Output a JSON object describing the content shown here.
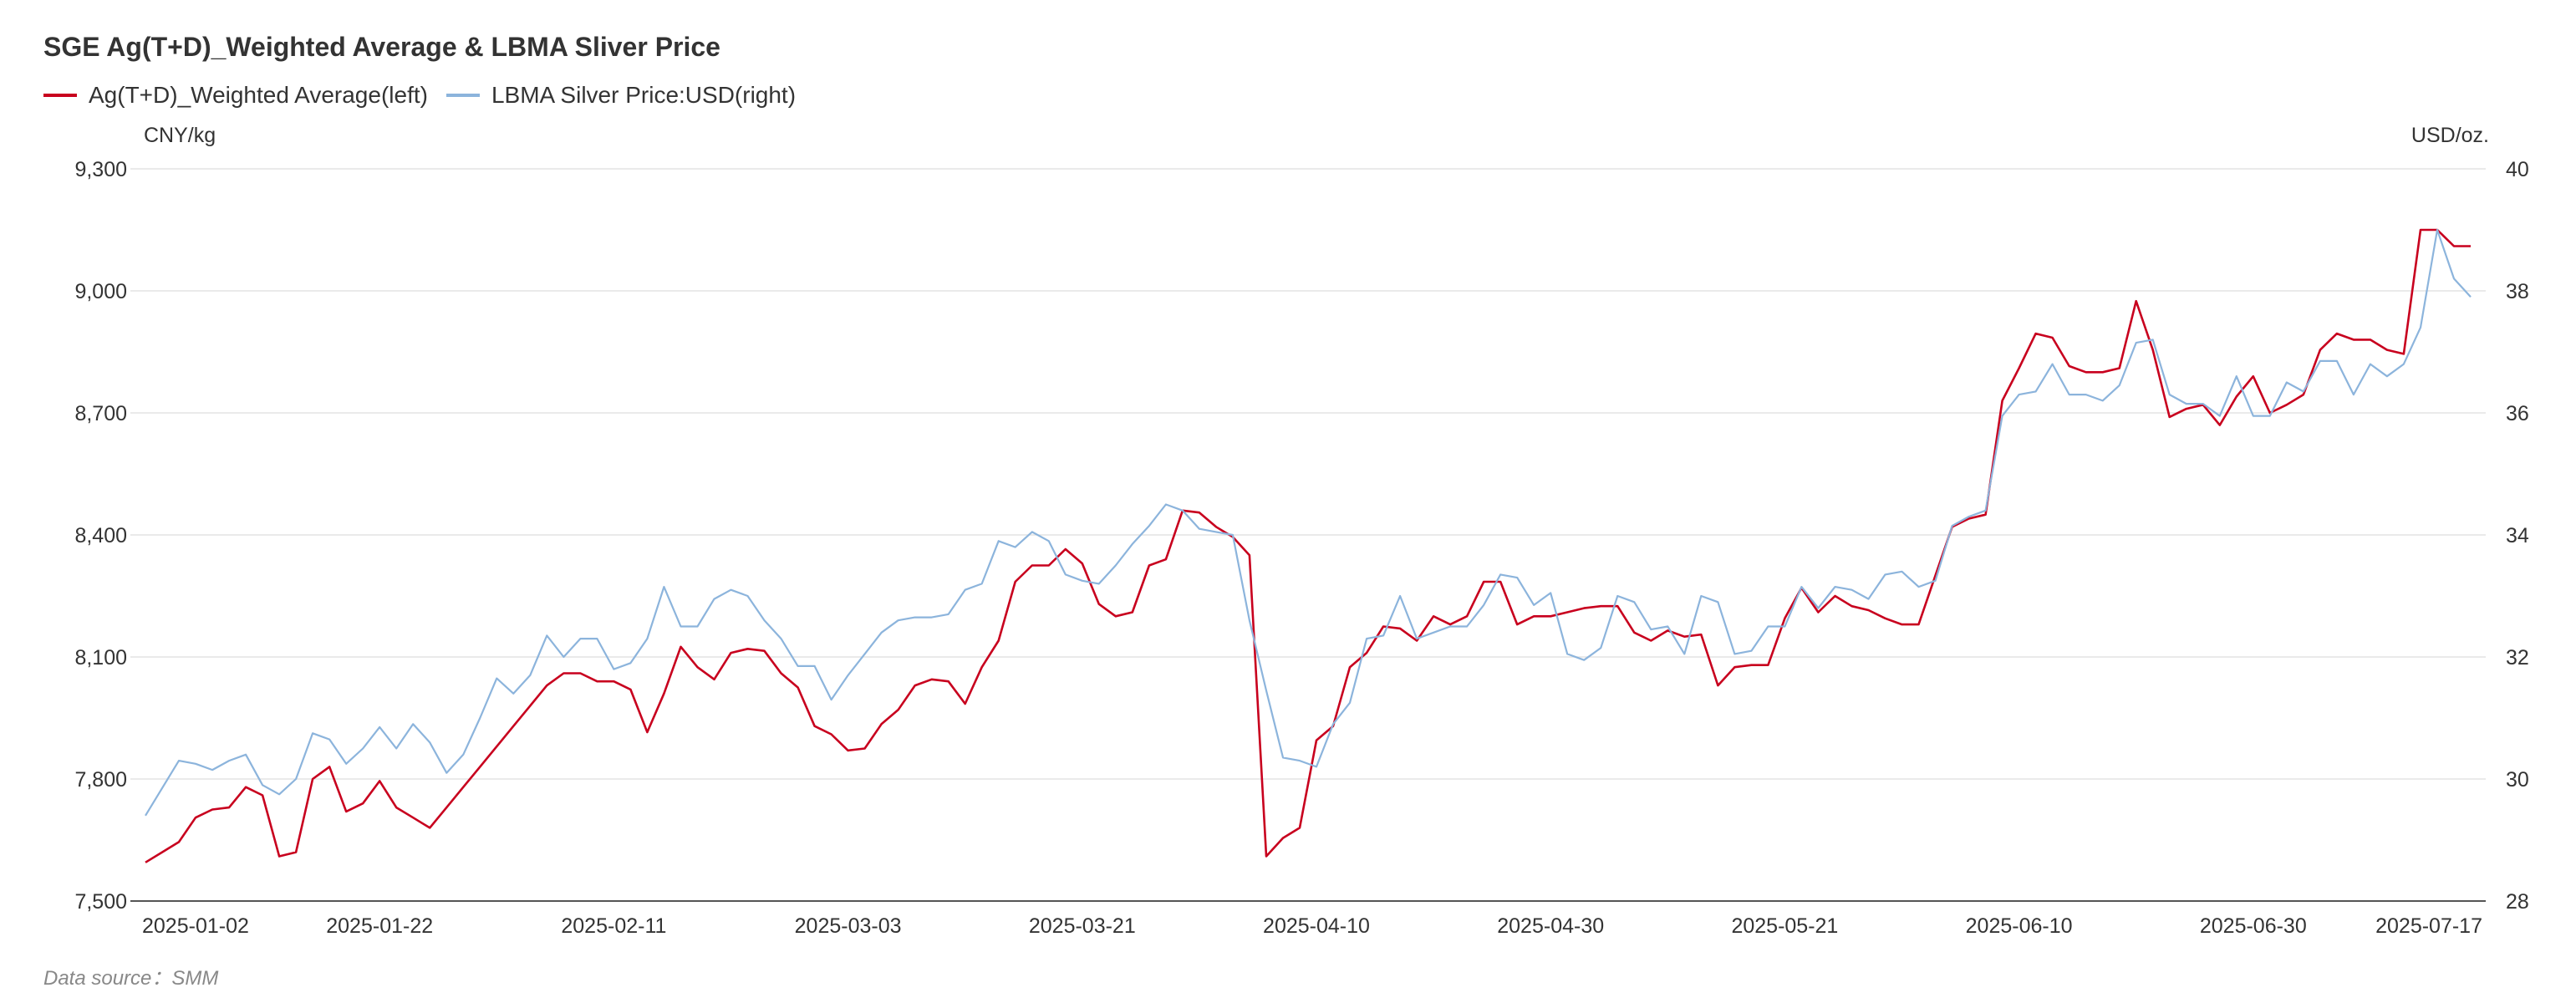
{
  "chart_data": {
    "type": "line",
    "title": "SGE Ag(T+D)_Weighted Average & LBMA Sliver Price",
    "left_axis_unit": "CNY/kg",
    "right_axis_unit": "USD/oz.",
    "left_ylim": [
      7500,
      9300
    ],
    "right_ylim": [
      28,
      40
    ],
    "left_ticks": [
      "7,500",
      "7,800",
      "8,100",
      "8,400",
      "8,700",
      "9,000",
      "9,300"
    ],
    "right_ticks": [
      "28",
      "30",
      "32",
      "34",
      "36",
      "38",
      "40"
    ],
    "x_tick_labels": [
      "2025-01-02",
      "2025-01-22",
      "2025-02-11",
      "2025-03-03",
      "2025-03-21",
      "2025-04-10",
      "2025-04-30",
      "2025-05-21",
      "2025-06-10",
      "2025-06-30",
      "2025-07-17"
    ],
    "grid": true,
    "legend_position": "top-left",
    "source": "Data source：SMM",
    "series": [
      {
        "name": "Ag(T+D)_Weighted Average(left)",
        "axis": "left",
        "color": "#c8001e",
        "values": [
          7595,
          7620,
          7645,
          7705,
          7725,
          7730,
          7780,
          7760,
          7610,
          7620,
          7800,
          7830,
          7720,
          7740,
          7795,
          7730,
          7705,
          7680,
          7730,
          7780,
          7830,
          7880,
          7930,
          7980,
          8030,
          8060,
          8060,
          8040,
          8040,
          8020,
          7915,
          8010,
          8125,
          8075,
          8045,
          8110,
          8120,
          8115,
          8060,
          8025,
          7930,
          7910,
          7870,
          7875,
          7935,
          7970,
          8030,
          8045,
          8040,
          7985,
          8075,
          8140,
          8285,
          8325,
          8325,
          8365,
          8330,
          8230,
          8200,
          8210,
          8325,
          8340,
          8460,
          8455,
          8420,
          8395,
          8350,
          7610,
          7655,
          7680,
          7895,
          7930,
          8075,
          8110,
          8175,
          8170,
          8140,
          8200,
          8180,
          8200,
          8285,
          8285,
          8180,
          8200,
          8200,
          8210,
          8220,
          8225,
          8225,
          8160,
          8140,
          8165,
          8150,
          8155,
          8030,
          8075,
          8080,
          8080,
          8195,
          8270,
          8210,
          8250,
          8225,
          8215,
          8195,
          8180,
          8180,
          8300,
          8420,
          8440,
          8450,
          8730,
          8810,
          8895,
          8885,
          8815,
          8800,
          8800,
          8810,
          8975,
          8855,
          8690,
          8710,
          8720,
          8670,
          8740,
          8790,
          8700,
          8720,
          8745,
          8855,
          8895,
          8880,
          8880,
          8855,
          8845,
          9150,
          9150,
          9110,
          9110
        ],
        "x_index": [
          0,
          1,
          2,
          3,
          4,
          5,
          6,
          7,
          8,
          9,
          10,
          11,
          12,
          13,
          14,
          15,
          16,
          17,
          18,
          19,
          20,
          21,
          22,
          23,
          24,
          25,
          26,
          27,
          28,
          29,
          30,
          31,
          32,
          33,
          34,
          35,
          36,
          37,
          38,
          39,
          40,
          41,
          42,
          43,
          44,
          45,
          46,
          47,
          48,
          49,
          50,
          51,
          52,
          53,
          54,
          55,
          56,
          57,
          58,
          59,
          60,
          61,
          62,
          63,
          64,
          65,
          66,
          67,
          68,
          69,
          70,
          71,
          72,
          73,
          74,
          75,
          76,
          77,
          78,
          79,
          80,
          81,
          82,
          83,
          84,
          85,
          86,
          87,
          88,
          89,
          90,
          91,
          92,
          93,
          94,
          95,
          96,
          97,
          98,
          99,
          100,
          101,
          102,
          103,
          104,
          105,
          106,
          107,
          108,
          109,
          110,
          111,
          112,
          113,
          114,
          115,
          116,
          117,
          118,
          119,
          120,
          121,
          122,
          123,
          124,
          125,
          126,
          127,
          128,
          129,
          130,
          131,
          132,
          133,
          134,
          135,
          136,
          137,
          138,
          139
        ]
      },
      {
        "name": "LBMA Silver Price:USD(right)",
        "axis": "right",
        "color": "#8cb4dc",
        "values": [
          29.4,
          29.85,
          30.3,
          30.25,
          30.15,
          30.3,
          30.4,
          29.9,
          29.75,
          30.0,
          30.75,
          30.65,
          30.25,
          30.5,
          30.85,
          30.5,
          30.9,
          30.6,
          30.1,
          30.4,
          31.0,
          31.65,
          31.4,
          31.7,
          32.35,
          32.0,
          32.3,
          32.3,
          31.8,
          31.9,
          32.3,
          33.15,
          32.5,
          32.5,
          32.95,
          33.1,
          33.0,
          32.6,
          32.3,
          31.85,
          31.85,
          31.3,
          31.7,
          32.05,
          32.4,
          32.6,
          32.65,
          32.65,
          32.7,
          33.1,
          33.2,
          33.9,
          33.8,
          34.05,
          33.9,
          33.35,
          33.25,
          33.2,
          33.5,
          33.85,
          34.15,
          34.5,
          34.4,
          34.1,
          34.05,
          34.0,
          32.6,
          31.45,
          30.35,
          30.3,
          30.2,
          30.9,
          31.25,
          32.3,
          32.35,
          33.0,
          32.3,
          32.4,
          32.5,
          32.5,
          32.85,
          33.35,
          33.3,
          32.85,
          33.05,
          32.05,
          31.95,
          32.15,
          33.0,
          32.9,
          32.45,
          32.5,
          32.05,
          33.0,
          32.9,
          32.05,
          32.1,
          32.5,
          32.5,
          33.15,
          32.8,
          33.15,
          33.1,
          32.95,
          33.35,
          33.4,
          33.15,
          33.25,
          34.15,
          34.3,
          34.4,
          35.95,
          36.3,
          36.35,
          36.8,
          36.3,
          36.3,
          36.2,
          36.45,
          37.15,
          37.2,
          36.3,
          36.15,
          36.15,
          35.95,
          36.6,
          35.95,
          35.95,
          36.5,
          36.35,
          36.85,
          36.85,
          36.3,
          36.8,
          36.6,
          36.8,
          37.4,
          39.0,
          38.2,
          37.9
        ],
        "x_index": [
          0,
          1,
          2,
          3,
          4,
          5,
          6,
          7,
          8,
          9,
          10,
          11,
          12,
          13,
          14,
          15,
          16,
          17,
          18,
          19,
          20,
          21,
          22,
          23,
          24,
          25,
          26,
          27,
          28,
          29,
          30,
          31,
          32,
          33,
          34,
          35,
          36,
          37,
          38,
          39,
          40,
          41,
          42,
          43,
          44,
          45,
          46,
          47,
          48,
          49,
          50,
          51,
          52,
          53,
          54,
          55,
          56,
          57,
          58,
          59,
          60,
          61,
          62,
          63,
          64,
          65,
          66,
          67,
          68,
          69,
          70,
          71,
          72,
          73,
          74,
          75,
          76,
          77,
          78,
          79,
          80,
          81,
          82,
          83,
          84,
          85,
          86,
          87,
          88,
          89,
          90,
          91,
          92,
          93,
          94,
          95,
          96,
          97,
          98,
          99,
          100,
          101,
          102,
          103,
          104,
          105,
          106,
          107,
          108,
          109,
          110,
          111,
          112,
          113,
          114,
          115,
          116,
          117,
          118,
          119,
          120,
          121,
          122,
          123,
          124,
          125,
          126,
          127,
          128,
          129,
          130,
          131,
          132,
          133,
          134,
          135,
          136,
          137,
          138,
          139
        ]
      }
    ]
  }
}
